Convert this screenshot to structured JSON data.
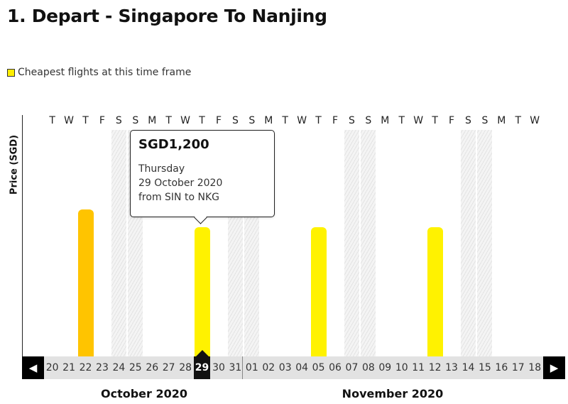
{
  "page": {
    "title": "1. Depart - Singapore To Nanjing"
  },
  "legend": {
    "label": "Cheapest flights at this time frame",
    "color": "#ffee00"
  },
  "chart": {
    "y_axis_label": "Price (SGD)",
    "colors": {
      "bar_default": "#fff200",
      "bar_cheapest_highlight": "#ffc400",
      "selected_day": "#111111"
    }
  },
  "calendar": {
    "days": [
      {
        "weekday": "T",
        "date": "20",
        "weekend": false
      },
      {
        "weekday": "W",
        "date": "21",
        "weekend": false
      },
      {
        "weekday": "T",
        "date": "22",
        "weekend": false
      },
      {
        "weekday": "F",
        "date": "23",
        "weekend": false
      },
      {
        "weekday": "S",
        "date": "24",
        "weekend": true
      },
      {
        "weekday": "S",
        "date": "25",
        "weekend": true
      },
      {
        "weekday": "M",
        "date": "26",
        "weekend": false
      },
      {
        "weekday": "T",
        "date": "27",
        "weekend": false
      },
      {
        "weekday": "W",
        "date": "28",
        "weekend": false
      },
      {
        "weekday": "T",
        "date": "29",
        "weekend": false
      },
      {
        "weekday": "F",
        "date": "30",
        "weekend": false
      },
      {
        "weekday": "S",
        "date": "31",
        "weekend": true
      },
      {
        "weekday": "S",
        "date": "01",
        "weekend": true
      },
      {
        "weekday": "M",
        "date": "02",
        "weekend": false
      },
      {
        "weekday": "T",
        "date": "03",
        "weekend": false
      },
      {
        "weekday": "W",
        "date": "04",
        "weekend": false
      },
      {
        "weekday": "T",
        "date": "05",
        "weekend": false
      },
      {
        "weekday": "F",
        "date": "06",
        "weekend": false
      },
      {
        "weekday": "S",
        "date": "07",
        "weekend": true
      },
      {
        "weekday": "S",
        "date": "08",
        "weekend": true
      },
      {
        "weekday": "M",
        "date": "09",
        "weekend": false
      },
      {
        "weekday": "T",
        "date": "10",
        "weekend": false
      },
      {
        "weekday": "W",
        "date": "11",
        "weekend": false
      },
      {
        "weekday": "T",
        "date": "12",
        "weekend": false
      },
      {
        "weekday": "F",
        "date": "13",
        "weekend": false
      },
      {
        "weekday": "S",
        "date": "14",
        "weekend": true
      },
      {
        "weekday": "S",
        "date": "15",
        "weekend": true
      },
      {
        "weekday": "M",
        "date": "16",
        "weekend": false
      },
      {
        "weekday": "T",
        "date": "17",
        "weekend": false
      },
      {
        "weekday": "W",
        "date": "18",
        "weekend": false
      }
    ],
    "selected_date": "29",
    "bars": [
      {
        "date": "22",
        "relative_height": 0.65,
        "style": "orange"
      },
      {
        "date": "29",
        "relative_height": 0.57,
        "style": "default"
      },
      {
        "date": "05",
        "relative_height": 0.57,
        "style": "default"
      },
      {
        "date": "12",
        "relative_height": 0.57,
        "style": "default"
      }
    ],
    "months": [
      {
        "label": "October 2020"
      },
      {
        "label": "November 2020"
      }
    ],
    "prev_icon": "caret-left-icon",
    "next_icon": "caret-right-icon"
  },
  "tooltip": {
    "price": "SGD1,200",
    "weekday": "Thursday",
    "date": "29 October 2020",
    "route": "from SIN to NKG"
  }
}
